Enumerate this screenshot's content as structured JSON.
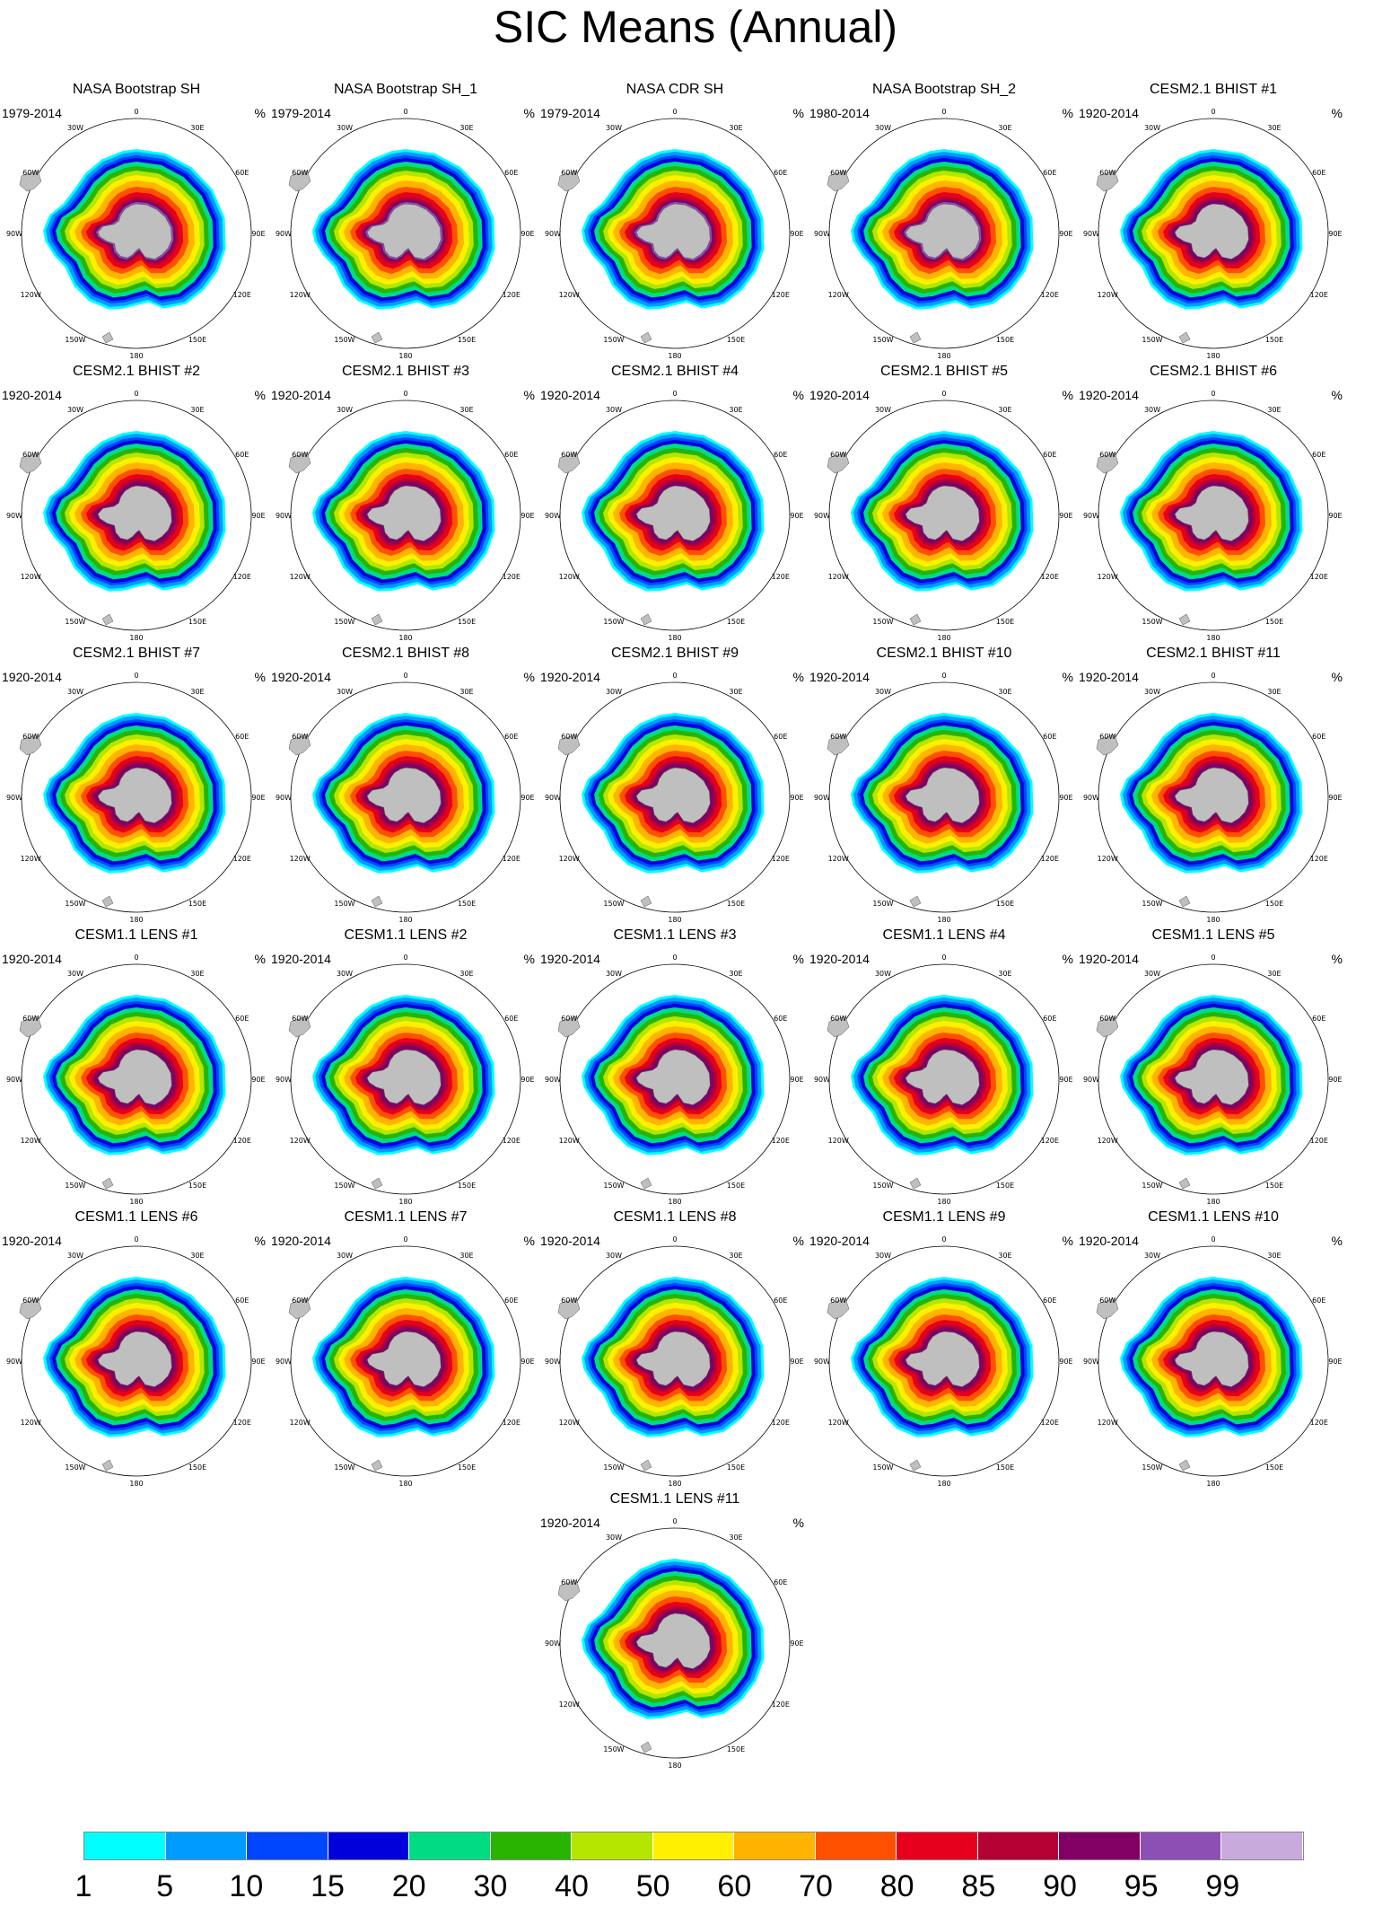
{
  "title": "SIC Means (Annual)",
  "units": "%",
  "longitude_labels": [
    "0",
    "30E",
    "60E",
    "90E",
    "120E",
    "150E",
    "180",
    "150W",
    "120W",
    "90W",
    "60W",
    "30W"
  ],
  "panels": [
    {
      "title": "NASA Bootstrap SH",
      "period": "1979-2014"
    },
    {
      "title": "NASA Bootstrap SH_1",
      "period": "1979-2014"
    },
    {
      "title": "NASA CDR SH",
      "period": "1979-2014"
    },
    {
      "title": "NASA Bootstrap SH_2",
      "period": "1980-2014"
    },
    {
      "title": "CESM2.1 BHIST #1",
      "period": "1920-2014"
    },
    {
      "title": "CESM2.1 BHIST #2",
      "period": "1920-2014"
    },
    {
      "title": "CESM2.1 BHIST #3",
      "period": "1920-2014"
    },
    {
      "title": "CESM2.1 BHIST #4",
      "period": "1920-2014"
    },
    {
      "title": "CESM2.1 BHIST #5",
      "period": "1920-2014"
    },
    {
      "title": "CESM2.1 BHIST #6",
      "period": "1920-2014"
    },
    {
      "title": "CESM2.1 BHIST #7",
      "period": "1920-2014"
    },
    {
      "title": "CESM2.1 BHIST #8",
      "period": "1920-2014"
    },
    {
      "title": "CESM2.1 BHIST #9",
      "period": "1920-2014"
    },
    {
      "title": "CESM2.1 BHIST #10",
      "period": "1920-2014"
    },
    {
      "title": "CESM2.1 BHIST #11",
      "period": "1920-2014"
    },
    {
      "title": "CESM1.1 LENS #1",
      "period": "1920-2014"
    },
    {
      "title": "CESM1.1 LENS #2",
      "period": "1920-2014"
    },
    {
      "title": "CESM1.1 LENS #3",
      "period": "1920-2014"
    },
    {
      "title": "CESM1.1 LENS #4",
      "period": "1920-2014"
    },
    {
      "title": "CESM1.1 LENS #5",
      "period": "1920-2014"
    },
    {
      "title": "CESM1.1 LENS #6",
      "period": "1920-2014"
    },
    {
      "title": "CESM1.1 LENS #7",
      "period": "1920-2014"
    },
    {
      "title": "CESM1.1 LENS #8",
      "period": "1920-2014"
    },
    {
      "title": "CESM1.1 LENS #9",
      "period": "1920-2014"
    },
    {
      "title": "CESM1.1 LENS #10",
      "period": "1920-2014"
    },
    {
      "title": "CESM1.1 LENS #11",
      "period": "1920-2014"
    }
  ],
  "legend": {
    "labels": [
      "1",
      "5",
      "10",
      "15",
      "20",
      "30",
      "40",
      "50",
      "60",
      "70",
      "80",
      "85",
      "90",
      "95",
      "99"
    ],
    "colors": [
      "#00ffff",
      "#009bff",
      "#0046ff",
      "#0000dc",
      "#00dc82",
      "#28b400",
      "#b4e600",
      "#fff000",
      "#ffb400",
      "#ff5000",
      "#e6001e",
      "#b40032",
      "#820064",
      "#8c50b4",
      "#c8aadc"
    ]
  },
  "map_colors": {
    "land": "#bfbfbf",
    "coast": "#555555",
    "rim": "#000000"
  }
}
